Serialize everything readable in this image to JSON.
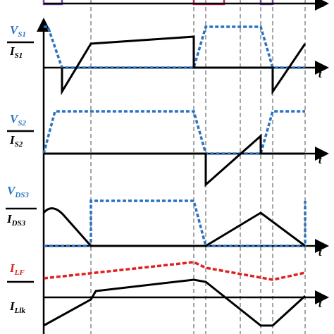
{
  "time_label": "t",
  "panels": [
    {
      "top": {
        "main": "V",
        "sub": "S1"
      },
      "bottom": {
        "main": "I",
        "sub": "S1"
      }
    },
    {
      "top": {
        "main": "V",
        "sub": "S2"
      },
      "bottom": {
        "main": "I",
        "sub": "S2"
      }
    },
    {
      "top": {
        "main": "V",
        "sub": "DS3"
      },
      "bottom": {
        "main": "I",
        "sub": "DS3"
      }
    },
    {
      "top": {
        "main": "I",
        "sub": "LF"
      },
      "bottom": {
        "main": "I",
        "sub": "Llk"
      }
    }
  ]
}
